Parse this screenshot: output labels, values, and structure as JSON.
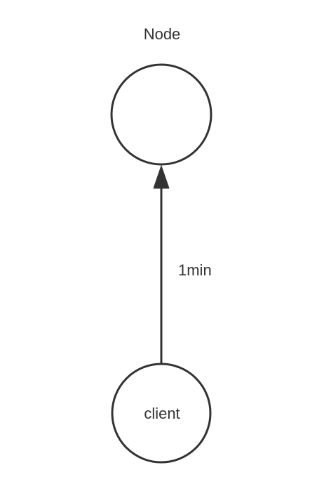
{
  "diagram": {
    "nodes": [
      {
        "id": "node",
        "label": "Node"
      },
      {
        "id": "client",
        "label": "client"
      }
    ],
    "edges": [
      {
        "from": "client",
        "to": "node",
        "label": "1min"
      }
    ],
    "colors": {
      "stroke": "#333333",
      "text": "#333333",
      "background": "#ffffff"
    }
  }
}
